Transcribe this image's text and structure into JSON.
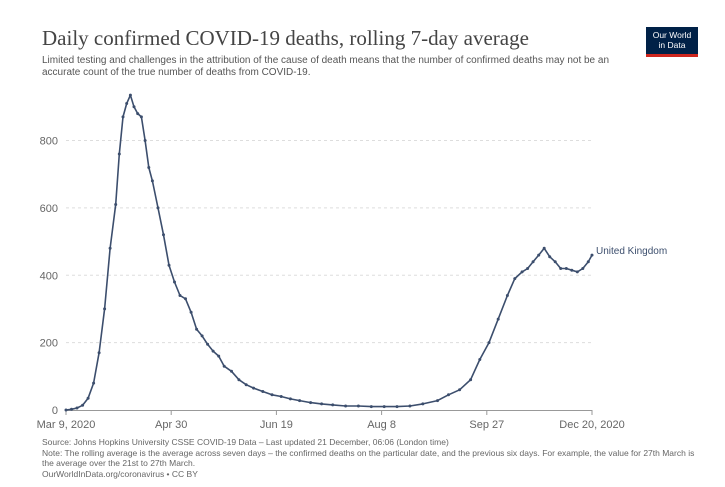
{
  "chart_data": {
    "type": "line",
    "title": "Daily confirmed COVID-19 deaths, rolling 7-day average",
    "subtitle": "Limited testing and challenges in the attribution of the cause of death means that the number of confirmed deaths may not be an accurate count of the true number of deaths from COVID-19.",
    "x_tick_labels": [
      "Mar 9, 2020",
      "Apr 30",
      "Jun 19",
      "Aug 8",
      "Sep 27",
      "Dec 20, 2020"
    ],
    "y_ticks": [
      0,
      200,
      400,
      600,
      800
    ],
    "ylim": [
      0,
      950
    ],
    "grid": "horizontal-dashed",
    "line_color": "#3c4e6d",
    "series": [
      {
        "name": "United Kingdom",
        "x": [
          "2020-03-09",
          "2020-03-12",
          "2020-03-15",
          "2020-03-18",
          "2020-03-21",
          "2020-03-24",
          "2020-03-27",
          "2020-03-30",
          "2020-04-02",
          "2020-04-05",
          "2020-04-07",
          "2020-04-09",
          "2020-04-11",
          "2020-04-13",
          "2020-04-15",
          "2020-04-17",
          "2020-04-19",
          "2020-04-21",
          "2020-04-23",
          "2020-04-25",
          "2020-04-28",
          "2020-05-01",
          "2020-05-04",
          "2020-05-07",
          "2020-05-10",
          "2020-05-13",
          "2020-05-16",
          "2020-05-19",
          "2020-05-22",
          "2020-05-25",
          "2020-05-28",
          "2020-05-31",
          "2020-06-03",
          "2020-06-07",
          "2020-06-11",
          "2020-06-15",
          "2020-06-19",
          "2020-06-24",
          "2020-06-29",
          "2020-07-04",
          "2020-07-09",
          "2020-07-14",
          "2020-07-20",
          "2020-07-26",
          "2020-08-01",
          "2020-08-08",
          "2020-08-15",
          "2020-08-22",
          "2020-08-29",
          "2020-09-05",
          "2020-09-12",
          "2020-09-19",
          "2020-09-27",
          "2020-10-03",
          "2020-10-09",
          "2020-10-15",
          "2020-10-20",
          "2020-10-25",
          "2020-10-30",
          "2020-11-04",
          "2020-11-08",
          "2020-11-12",
          "2020-11-15",
          "2020-11-18",
          "2020-11-21",
          "2020-11-24",
          "2020-11-27",
          "2020-11-30",
          "2020-12-03",
          "2020-12-06",
          "2020-12-09",
          "2020-12-12",
          "2020-12-15",
          "2020-12-18",
          "2020-12-20"
        ],
        "values": [
          0,
          2,
          6,
          14,
          35,
          80,
          170,
          300,
          480,
          610,
          760,
          870,
          910,
          935,
          900,
          880,
          870,
          800,
          720,
          680,
          600,
          520,
          430,
          380,
          340,
          330,
          290,
          240,
          220,
          195,
          175,
          160,
          130,
          115,
          90,
          75,
          65,
          55,
          45,
          40,
          33,
          28,
          22,
          18,
          15,
          12,
          12,
          10,
          10,
          10,
          12,
          18,
          28,
          45,
          60,
          90,
          150,
          200,
          270,
          340,
          390,
          410,
          420,
          440,
          460,
          480,
          455,
          440,
          420,
          420,
          415,
          410,
          420,
          440,
          460
        ]
      }
    ]
  },
  "logo": {
    "line1": "Our World",
    "line2": "in Data"
  },
  "footer": {
    "source": "Source: Johns Hopkins University CSSE COVID-19 Data – Last updated 21 December, 06:06 (London time)",
    "note": "Note: The rolling average is the average across seven days – the confirmed deaths on the particular date, and the previous six days. For example, the value for 27th March is the average over the 21st to 27th March.",
    "url": "OurWorldInData.org/coronavirus • CC BY"
  }
}
